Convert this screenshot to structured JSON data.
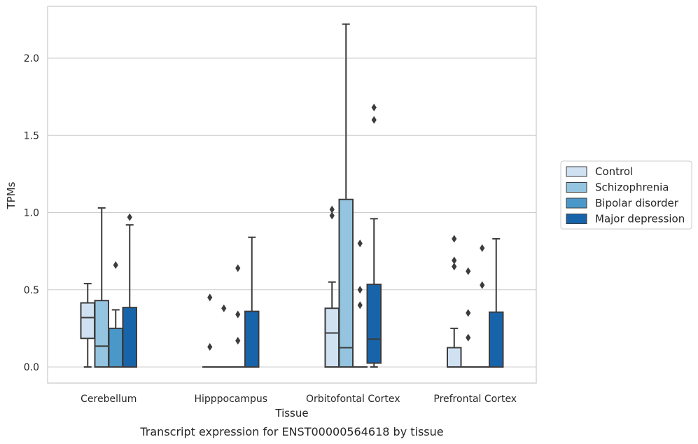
{
  "chart_data": {
    "type": "box",
    "title": "",
    "caption": "Transcript expression for ENST00000564618 by tissue",
    "xlabel": "Tissue",
    "ylabel": "TPMs",
    "ylim": [
      -0.11,
      2.33
    ],
    "yticks": [
      "0.0",
      "0.5",
      "1.0",
      "1.5",
      "2.0"
    ],
    "ytick_values": [
      0,
      0.5,
      1.0,
      1.5,
      2.0
    ],
    "grid": "horizontal",
    "legend_position": "right",
    "categories": [
      "Cerebellum",
      "Hipppocampus",
      "Orbitofontal Cortex",
      "Prefrontal Cortex"
    ],
    "series": [
      {
        "name": "Control",
        "color": "#d0e1f2",
        "boxes": [
          {
            "whislo": 0.0,
            "q1": 0.185,
            "med": 0.32,
            "q3": 0.415,
            "whishi": 0.54,
            "fliers": []
          },
          {
            "whislo": 0.0,
            "q1": 0.0,
            "med": 0.0,
            "q3": 0.0,
            "whishi": 0.0,
            "fliers": [
              0.45,
              0.13
            ]
          },
          {
            "whislo": 0.0,
            "q1": 0.0,
            "med": 0.22,
            "q3": 0.38,
            "whishi": 0.55,
            "fliers": [
              1.02,
              0.98
            ]
          },
          {
            "whislo": 0.0,
            "q1": 0.0,
            "med": 0.0,
            "q3": 0.125,
            "whishi": 0.25,
            "fliers": [
              0.83,
              0.69,
              0.65
            ]
          }
        ]
      },
      {
        "name": "Schizophrenia",
        "color": "#94c4df",
        "boxes": [
          {
            "whislo": 0.0,
            "q1": 0.0,
            "med": 0.135,
            "q3": 0.43,
            "whishi": 1.03,
            "fliers": []
          },
          {
            "whislo": 0.0,
            "q1": 0.0,
            "med": 0.0,
            "q3": 0.0,
            "whishi": 0.0,
            "fliers": [
              0.38
            ]
          },
          {
            "whislo": 0.0,
            "q1": 0.0,
            "med": 0.125,
            "q3": 1.085,
            "whishi": 2.22,
            "fliers": []
          },
          {
            "whislo": 0.0,
            "q1": 0.0,
            "med": 0.0,
            "q3": 0.0,
            "whishi": 0.0,
            "fliers": [
              0.62,
              0.35,
              0.19
            ]
          }
        ]
      },
      {
        "name": "Bipolar disorder",
        "color": "#4a98c9",
        "boxes": [
          {
            "whislo": 0.0,
            "q1": 0.0,
            "med": 0.0,
            "q3": 0.25,
            "whishi": 0.37,
            "fliers": [
              0.66
            ]
          },
          {
            "whislo": 0.0,
            "q1": 0.0,
            "med": 0.0,
            "q3": 0.0,
            "whishi": 0.0,
            "fliers": [
              0.64,
              0.34,
              0.17
            ]
          },
          {
            "whislo": 0.0,
            "q1": 0.0,
            "med": 0.0,
            "q3": 0.0,
            "whishi": 0.0,
            "fliers": [
              0.8,
              0.5,
              0.4
            ]
          },
          {
            "whislo": 0.0,
            "q1": 0.0,
            "med": 0.0,
            "q3": 0.0,
            "whishi": 0.0,
            "fliers": [
              0.77,
              0.53
            ]
          }
        ]
      },
      {
        "name": "Major depression",
        "color": "#1764ab",
        "boxes": [
          {
            "whislo": 0.0,
            "q1": 0.0,
            "med": 0.0,
            "q3": 0.385,
            "whishi": 0.92,
            "fliers": [
              0.97
            ]
          },
          {
            "whislo": 0.0,
            "q1": 0.0,
            "med": 0.0,
            "q3": 0.36,
            "whishi": 0.84,
            "fliers": []
          },
          {
            "whislo": 0.0,
            "q1": 0.025,
            "med": 0.18,
            "q3": 0.535,
            "whishi": 0.96,
            "fliers": [
              1.68,
              1.6
            ]
          },
          {
            "whislo": 0.0,
            "q1": 0.0,
            "med": 0.0,
            "q3": 0.355,
            "whishi": 0.83,
            "fliers": []
          }
        ]
      }
    ]
  }
}
